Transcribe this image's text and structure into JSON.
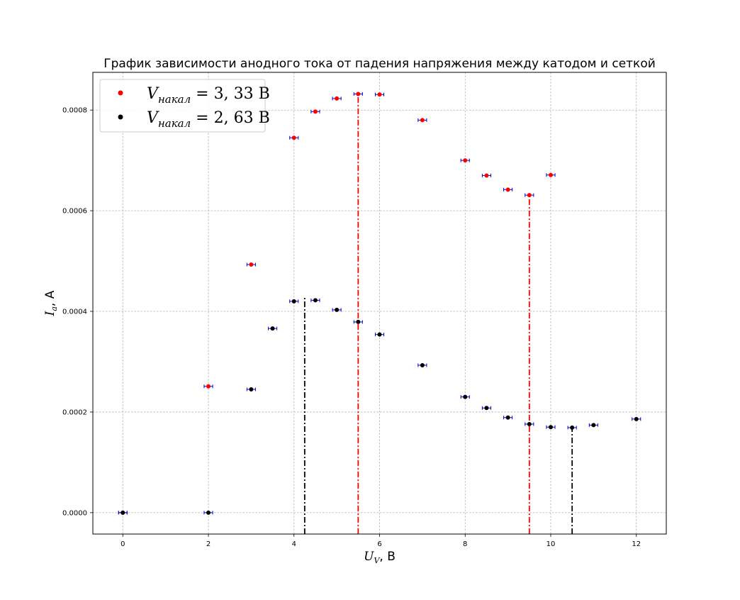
{
  "chart_data": {
    "type": "scatter",
    "title": "График зависимости анодного тока от падения напряжения между катодом и сеткой",
    "xlabel": {
      "symbol": "U",
      "sub": "V",
      "unit": ", В"
    },
    "ylabel": {
      "symbol": "I",
      "sub": "a",
      "unit": ", А"
    },
    "xlim": [
      -0.7,
      12.7
    ],
    "ylim": [
      -4.25e-05,
      0.000875
    ],
    "xticks": [
      0,
      2,
      4,
      6,
      8,
      10,
      12
    ],
    "xtick_labels": [
      "0",
      "2",
      "4",
      "6",
      "8",
      "10",
      "12"
    ],
    "yticks": [
      0,
      0.0002,
      0.0004,
      0.0006,
      0.0008
    ],
    "ytick_labels": [
      "0.0000",
      "0.0002",
      "0.0004",
      "0.0006",
      "0.0008"
    ],
    "grid": true,
    "legend_position": "top-left",
    "x_error": 0.1,
    "series": [
      {
        "legend_symbol": "V",
        "legend_sub": "накал",
        "legend_value": " = 3, 33 В",
        "color": "#ff0000",
        "x": [
          0,
          2,
          3,
          4,
          4.5,
          5,
          5.5,
          6,
          7,
          8,
          8.5,
          9,
          9.5,
          10
        ],
        "y": [
          0,
          0.000251,
          0.000493,
          0.000745,
          0.000797,
          0.000823,
          0.000832,
          0.000831,
          0.00078,
          0.0007,
          0.00067,
          0.000642,
          0.000631,
          0.000671
        ]
      },
      {
        "legend_symbol": "V",
        "legend_sub": "накал",
        "legend_value": " = 2, 63 В",
        "color": "#000000",
        "x": [
          0,
          2,
          3,
          3.5,
          4,
          4.5,
          5,
          5.5,
          6,
          7,
          8,
          8.5,
          9,
          9.5,
          10,
          10.5,
          11,
          12
        ],
        "y": [
          0,
          0,
          0.000245,
          0.000366,
          0.00042,
          0.000422,
          0.000403,
          0.000379,
          0.000354,
          0.000293,
          0.00023,
          0.000208,
          0.000189,
          0.000176,
          0.00017,
          0.000169,
          0.000174,
          0.000186
        ]
      }
    ],
    "vlines": [
      {
        "x": 4.25,
        "y": 0.00043,
        "color": "#000000"
      },
      {
        "x": 5.5,
        "y": 0.000832,
        "color": "#ff0000"
      },
      {
        "x": 9.5,
        "y": 0.000631,
        "color": "#ff0000"
      },
      {
        "x": 10.5,
        "y": 0.000169,
        "color": "#000000"
      }
    ],
    "errorbar_color": "#0000cc"
  }
}
